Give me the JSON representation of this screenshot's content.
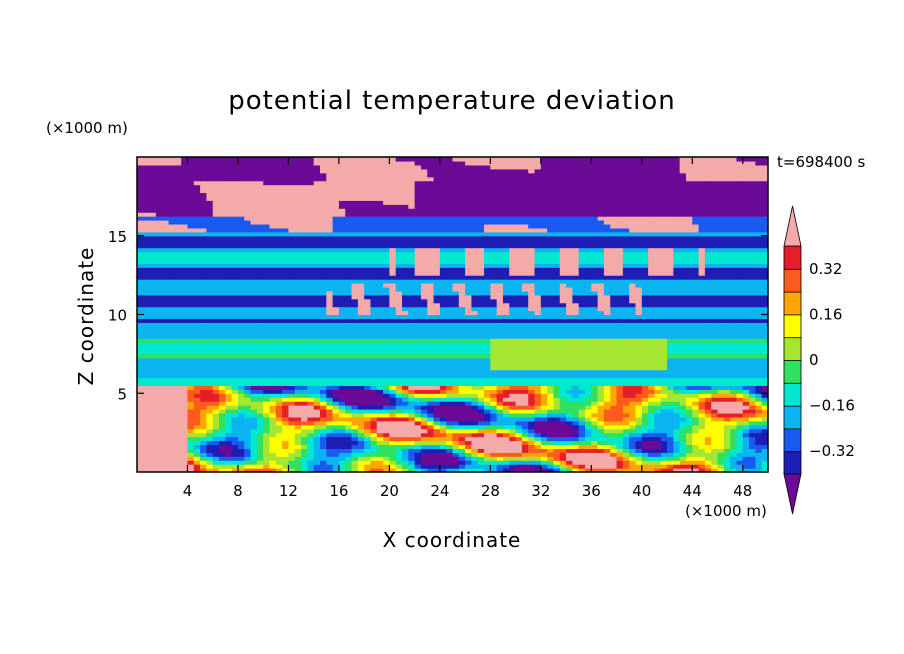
{
  "chart_data": {
    "type": "heatmap",
    "title": "potential temperature deviation",
    "xlabel": "X coordinate",
    "ylabel": "Z coordinate",
    "x_unit": "(×1000 m)",
    "y_unit": "(×1000 m)",
    "time_label": "t=698400 s",
    "xlim": [
      0,
      50
    ],
    "ylim": [
      0,
      20
    ],
    "x_ticks": [
      4,
      8,
      12,
      16,
      20,
      24,
      28,
      32,
      36,
      40,
      44,
      48
    ],
    "y_ticks": [
      5,
      10,
      15
    ],
    "colorbar": {
      "levels": [
        -0.4,
        -0.32,
        -0.24,
        -0.16,
        -0.08,
        0,
        0.08,
        0.16,
        0.24,
        0.32,
        0.4
      ],
      "tick_labels": [
        "0.32",
        "0.16",
        "0",
        "−0.16",
        "−0.32"
      ],
      "tick_values": [
        0.32,
        0.16,
        0,
        -0.16,
        -0.32
      ],
      "colors": [
        "#6a0a96",
        "#1e1eb4",
        "#1a5af0",
        "#0ab4f0",
        "#00e8d0",
        "#30e060",
        "#a6e632",
        "#ffff00",
        "#ffa600",
        "#ff5a1e",
        "#e61e28",
        "#f5aaaa"
      ],
      "extend": "both"
    },
    "field_description_bands": [
      {
        "z": [
          0,
          5.5
        ],
        "pattern": "turbulent mixed layer"
      },
      {
        "z": [
          5.5,
          9.5
        ],
        "value": -0.04
      },
      {
        "z": [
          9.5,
          12
        ],
        "value": -0.3
      },
      {
        "z": [
          12,
          15
        ],
        "value": -0.2
      },
      {
        "z": [
          15,
          20
        ],
        "value": 0.4
      }
    ]
  }
}
